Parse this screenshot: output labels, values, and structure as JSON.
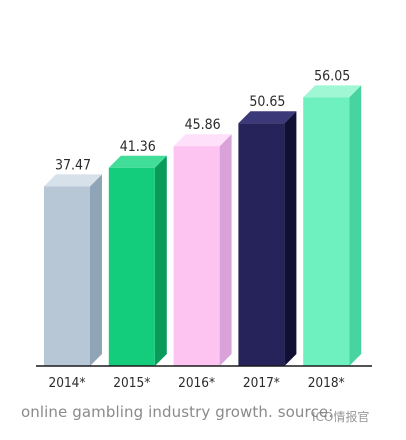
{
  "chart_data": {
    "type": "bar",
    "categories": [
      "2014*",
      "2015*",
      "2016*",
      "2017*",
      "2018*"
    ],
    "values": [
      37.47,
      41.36,
      45.86,
      50.65,
      56.05
    ],
    "value_labels": [
      "37.47",
      "41.36",
      "45.86",
      "50.65",
      "56.05"
    ],
    "bar_colors": [
      "#b7c7d6",
      "#13cc7c",
      "#fdc4f1",
      "#25235a",
      "#6ff0bf"
    ],
    "bar_side_colors": [
      "#8fa4b7",
      "#0a9b5b",
      "#d9a2d8",
      "#101034",
      "#47d4a1"
    ],
    "bar_top_colors": [
      "#d6e1ea",
      "#40de98",
      "#ffe0fa",
      "#3b3978",
      "#9ff7d4"
    ],
    "baseline_color": "#1a1a1a",
    "title": "",
    "xlabel": "",
    "ylabel": "",
    "ylim": [
      0,
      58
    ],
    "grid": false,
    "legend": "none"
  },
  "caption": {
    "text": "online gambling industry growth. source: "
  },
  "watermark": {
    "text": "ICO情报官"
  }
}
